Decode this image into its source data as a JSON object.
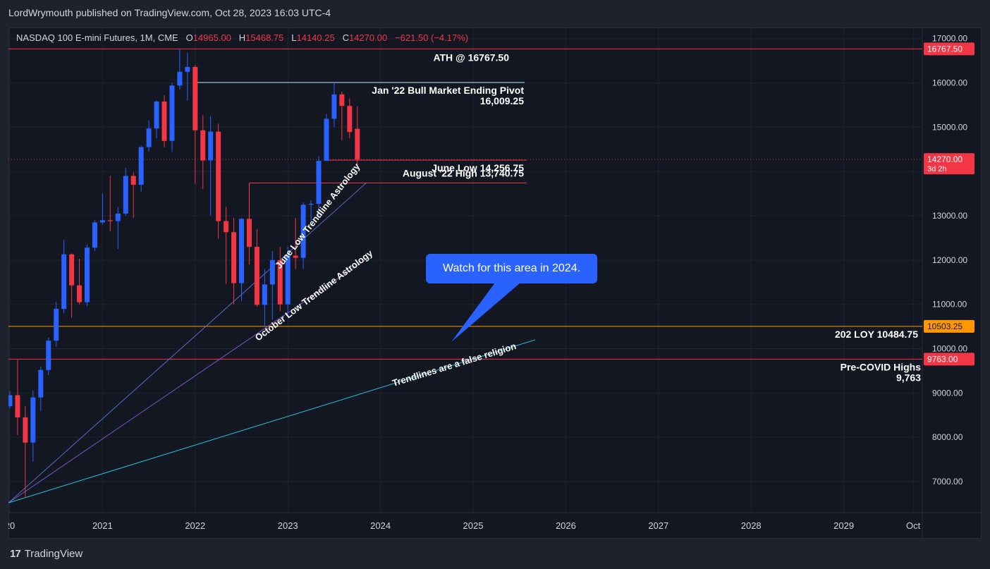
{
  "header": {
    "published_by": "LordWrymouth published on TradingView.com, Oct 28, 2023 16:03 UTC-4"
  },
  "instrument": {
    "name": "NASDAQ 100 E-mini Futures, 1M, CME",
    "open_label": "O",
    "open": "14965.00",
    "high_label": "H",
    "high": "15468.75",
    "low_label": "L",
    "low": "14140.25",
    "close_label": "C",
    "close": "14270.00",
    "change": "−621.50 (−4.17%)"
  },
  "footer": {
    "brand": "TradingView",
    "logo_glyph": "17"
  },
  "callout": {
    "text": "Watch for this area in 2024."
  },
  "colors": {
    "up": "#2962ff",
    "down": "#f23645",
    "background": "#131722",
    "grid": "#1f2330",
    "orange": "#ff9800",
    "cyan": "#26c6da",
    "purple": "#7e57c2",
    "blue_line": "#5c6bc0"
  },
  "chart_data": {
    "type": "candlestick",
    "timeframe": "1M",
    "y_axis": {
      "min": 6300,
      "max": 17250,
      "ticks": [
        "17000.00",
        "16000.00",
        "15000.00",
        "14000.00",
        "13000.00",
        "12000.00",
        "11000.00",
        "10000.00",
        "9000.00",
        "8000.00",
        "7000.00"
      ],
      "tick_values": [
        17000,
        16000,
        15000,
        14000,
        13000,
        12000,
        11000,
        10000,
        9000,
        8000,
        7000
      ]
    },
    "x_axis": {
      "ticks": [
        {
          "label": "20",
          "date": "2020-01"
        },
        {
          "label": "2021",
          "date": "2021-01"
        },
        {
          "label": "2022",
          "date": "2022-01"
        },
        {
          "label": "2023",
          "date": "2023-01"
        },
        {
          "label": "2024",
          "date": "2024-01"
        },
        {
          "label": "2025",
          "date": "2025-01"
        },
        {
          "label": "2026",
          "date": "2026-01"
        },
        {
          "label": "2027",
          "date": "2027-01"
        },
        {
          "label": "2028",
          "date": "2028-01"
        },
        {
          "label": "2029",
          "date": "2029-01"
        },
        {
          "label": "Oct",
          "date": "2029-10"
        }
      ]
    },
    "candles": [
      {
        "date": "2020-01",
        "o": 8700,
        "h": 9050,
        "l": 8650,
        "c": 8950
      },
      {
        "date": "2020-02",
        "o": 8950,
        "h": 9750,
        "l": 8050,
        "c": 8450
      },
      {
        "date": "2020-03",
        "o": 8450,
        "h": 8700,
        "l": 6630,
        "c": 7880
      },
      {
        "date": "2020-04",
        "o": 7880,
        "h": 9050,
        "l": 7450,
        "c": 8900
      },
      {
        "date": "2020-05",
        "o": 8900,
        "h": 9600,
        "l": 8600,
        "c": 9520
      },
      {
        "date": "2020-06",
        "o": 9520,
        "h": 10250,
        "l": 9400,
        "c": 10180
      },
      {
        "date": "2020-07",
        "o": 10180,
        "h": 11050,
        "l": 10050,
        "c": 10900
      },
      {
        "date": "2020-08",
        "o": 10900,
        "h": 12450,
        "l": 10800,
        "c": 12130
      },
      {
        "date": "2020-09",
        "o": 12130,
        "h": 12150,
        "l": 10700,
        "c": 11430
      },
      {
        "date": "2020-10",
        "o": 11430,
        "h": 12030,
        "l": 11000,
        "c": 11050
      },
      {
        "date": "2020-11",
        "o": 11050,
        "h": 12350,
        "l": 10960,
        "c": 12280
      },
      {
        "date": "2020-12",
        "o": 12280,
        "h": 12900,
        "l": 12200,
        "c": 12850
      },
      {
        "date": "2021-01",
        "o": 12850,
        "h": 13500,
        "l": 12800,
        "c": 12900
      },
      {
        "date": "2021-02",
        "o": 12900,
        "h": 13900,
        "l": 12650,
        "c": 12880
      },
      {
        "date": "2021-03",
        "o": 12880,
        "h": 13200,
        "l": 12250,
        "c": 13050
      },
      {
        "date": "2021-04",
        "o": 13050,
        "h": 14080,
        "l": 13000,
        "c": 13900
      },
      {
        "date": "2021-05",
        "o": 13900,
        "h": 13980,
        "l": 12950,
        "c": 13700
      },
      {
        "date": "2021-06",
        "o": 13700,
        "h": 14580,
        "l": 13550,
        "c": 14550
      },
      {
        "date": "2021-07",
        "o": 14550,
        "h": 15150,
        "l": 14450,
        "c": 14970
      },
      {
        "date": "2021-08",
        "o": 14970,
        "h": 15600,
        "l": 14750,
        "c": 15580
      },
      {
        "date": "2021-09",
        "o": 15580,
        "h": 15720,
        "l": 14550,
        "c": 14690
      },
      {
        "date": "2021-10",
        "o": 14690,
        "h": 16000,
        "l": 14440,
        "c": 15940
      },
      {
        "date": "2021-11",
        "o": 15940,
        "h": 16767.5,
        "l": 15850,
        "c": 16250
      },
      {
        "date": "2021-12",
        "o": 16250,
        "h": 16680,
        "l": 15600,
        "c": 16360
      },
      {
        "date": "2022-01",
        "o": 16360,
        "h": 16400,
        "l": 13720,
        "c": 14930
      },
      {
        "date": "2022-02",
        "o": 14930,
        "h": 15270,
        "l": 13600,
        "c": 14250
      },
      {
        "date": "2022-03",
        "o": 14250,
        "h": 15250,
        "l": 13000,
        "c": 14900
      },
      {
        "date": "2022-04",
        "o": 14900,
        "h": 15080,
        "l": 12480,
        "c": 12880
      },
      {
        "date": "2022-05",
        "o": 12880,
        "h": 13200,
        "l": 11460,
        "c": 12630
      },
      {
        "date": "2022-06",
        "o": 12630,
        "h": 12950,
        "l": 11000,
        "c": 11480
      },
      {
        "date": "2022-07",
        "o": 11480,
        "h": 12950,
        "l": 11080,
        "c": 12930
      },
      {
        "date": "2022-08",
        "o": 12930,
        "h": 13740.75,
        "l": 11900,
        "c": 12300
      },
      {
        "date": "2022-09",
        "o": 12300,
        "h": 12700,
        "l": 10950,
        "c": 10990
      },
      {
        "date": "2022-10",
        "o": 10990,
        "h": 11800,
        "l": 10490,
        "c": 11450
      },
      {
        "date": "2022-11",
        "o": 11450,
        "h": 12200,
        "l": 10650,
        "c": 12000
      },
      {
        "date": "2022-12",
        "o": 12000,
        "h": 12300,
        "l": 10850,
        "c": 11000
      },
      {
        "date": "2023-01",
        "o": 11000,
        "h": 12300,
        "l": 10750,
        "c": 12100
      },
      {
        "date": "2023-02",
        "o": 12100,
        "h": 12950,
        "l": 11800,
        "c": 12050
      },
      {
        "date": "2023-03",
        "o": 12050,
        "h": 13300,
        "l": 11800,
        "c": 13250
      },
      {
        "date": "2023-04",
        "o": 13250,
        "h": 13350,
        "l": 12760,
        "c": 13270
      },
      {
        "date": "2023-05",
        "o": 13270,
        "h": 14350,
        "l": 12950,
        "c": 14240
      },
      {
        "date": "2023-06",
        "o": 14240,
        "h": 15300,
        "l": 14256.75,
        "c": 15190
      },
      {
        "date": "2023-07",
        "o": 15190,
        "h": 16009.25,
        "l": 15000,
        "c": 15740
      },
      {
        "date": "2023-08",
        "o": 15740,
        "h": 15800,
        "l": 14700,
        "c": 15480
      },
      {
        "date": "2023-09",
        "o": 15480,
        "h": 15650,
        "l": 14750,
        "c": 14890
      },
      {
        "date": "2023-10",
        "o": 14965,
        "h": 15468.75,
        "l": 14140.25,
        "c": 14270
      }
    ],
    "horizontal_levels": [
      {
        "value": 16767.5,
        "label": "16767.50",
        "color": "#f23645",
        "annotation": "ATH @ 16767.50"
      },
      {
        "value": 14270,
        "label": "14270.00",
        "sublabel": "3d 2h",
        "color": "#f23645",
        "style": "dotted"
      },
      {
        "value": 10503.25,
        "label": "10503.25",
        "color": "#ff9800",
        "annotation": "202 LOY 10484.75"
      },
      {
        "value": 9763,
        "label": "9763.00",
        "color": "#f23645",
        "annotation": "Pre-COVID Highs",
        "annotation2": "9,763"
      }
    ],
    "annotations": {
      "jan22_pivot_title": "Jan '22 Bull Market Ending Pivot",
      "jan22_pivot_value": "16,009.25",
      "june_low": "June Low 14,256.75",
      "august_high": "August '22 High 13,740.75",
      "june_trend": "June Low Trendline Astrology",
      "october_trend": "October Low Trendline Astrology",
      "false_religion": "Trendlines are a false religion"
    },
    "grid": true
  }
}
